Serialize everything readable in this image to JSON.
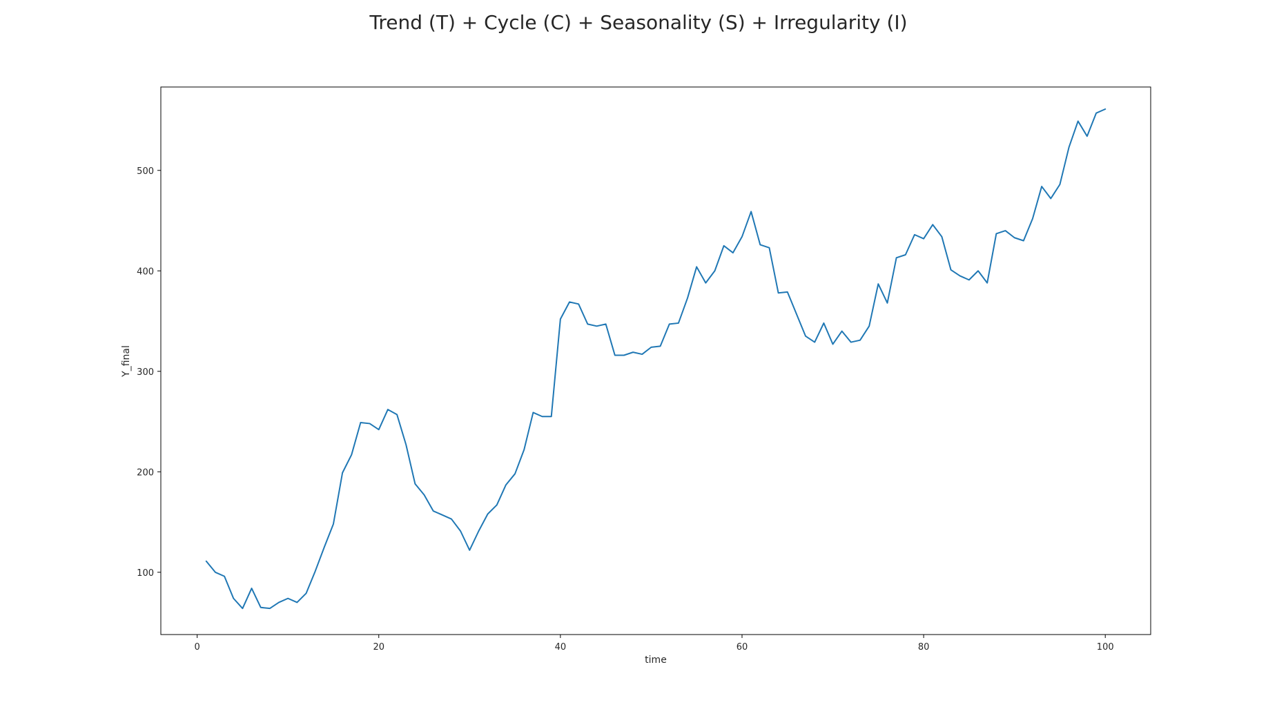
{
  "chart_data": {
    "type": "line",
    "title": "Trend (T) + Cycle (C) + Seasonality (S) + Irregularity (I)",
    "xlabel": "time",
    "ylabel": "Y_final",
    "xlim": [
      -4,
      105
    ],
    "ylim": [
      38,
      583
    ],
    "xticks": [
      0,
      20,
      40,
      60,
      80,
      100
    ],
    "yticks": [
      100,
      200,
      300,
      400,
      500
    ],
    "grid": false,
    "line_color": "#1f77b4",
    "series": [
      {
        "x": [
          1,
          2,
          3,
          4,
          5,
          6,
          7,
          8,
          9,
          10,
          11,
          12,
          13,
          14,
          15,
          16,
          17,
          18,
          19,
          20,
          21,
          22,
          23,
          24,
          25,
          26,
          27,
          28,
          29,
          30,
          31,
          32,
          33,
          34,
          35,
          36,
          37,
          38,
          39,
          40,
          41,
          42,
          43,
          44,
          45,
          46,
          47,
          48,
          49,
          50,
          51,
          52,
          53,
          54,
          55,
          56,
          57,
          58,
          59,
          60,
          61,
          62,
          63,
          64,
          65,
          66,
          67,
          68,
          69,
          70,
          71,
          72,
          73,
          74,
          75,
          76,
          77,
          78,
          79,
          80,
          81,
          82,
          83,
          84,
          85,
          86,
          87,
          88,
          89,
          90,
          91,
          92,
          93,
          94,
          95,
          96,
          97,
          98,
          99,
          100
        ],
        "values": [
          111,
          100,
          96,
          74,
          64,
          84,
          65,
          64,
          70,
          74,
          70,
          79,
          101,
          125,
          148,
          199,
          217,
          249,
          248,
          242,
          262,
          257,
          227,
          188,
          177,
          161,
          157,
          153,
          141,
          122,
          141,
          158,
          167,
          187,
          198,
          222,
          259,
          255,
          255,
          352,
          369,
          367,
          347,
          345,
          347,
          316,
          316,
          319,
          317,
          324,
          325,
          347,
          348,
          373,
          404,
          388,
          400,
          425,
          418,
          434,
          459,
          426,
          423,
          378,
          379,
          357,
          335,
          329,
          348,
          327,
          340,
          329,
          331,
          345,
          387,
          368,
          413,
          416,
          436,
          432,
          446,
          434,
          401,
          395,
          391,
          400,
          388,
          437,
          440,
          433,
          430,
          452,
          484,
          472,
          486,
          523,
          549,
          534,
          557,
          561
        ]
      }
    ]
  }
}
